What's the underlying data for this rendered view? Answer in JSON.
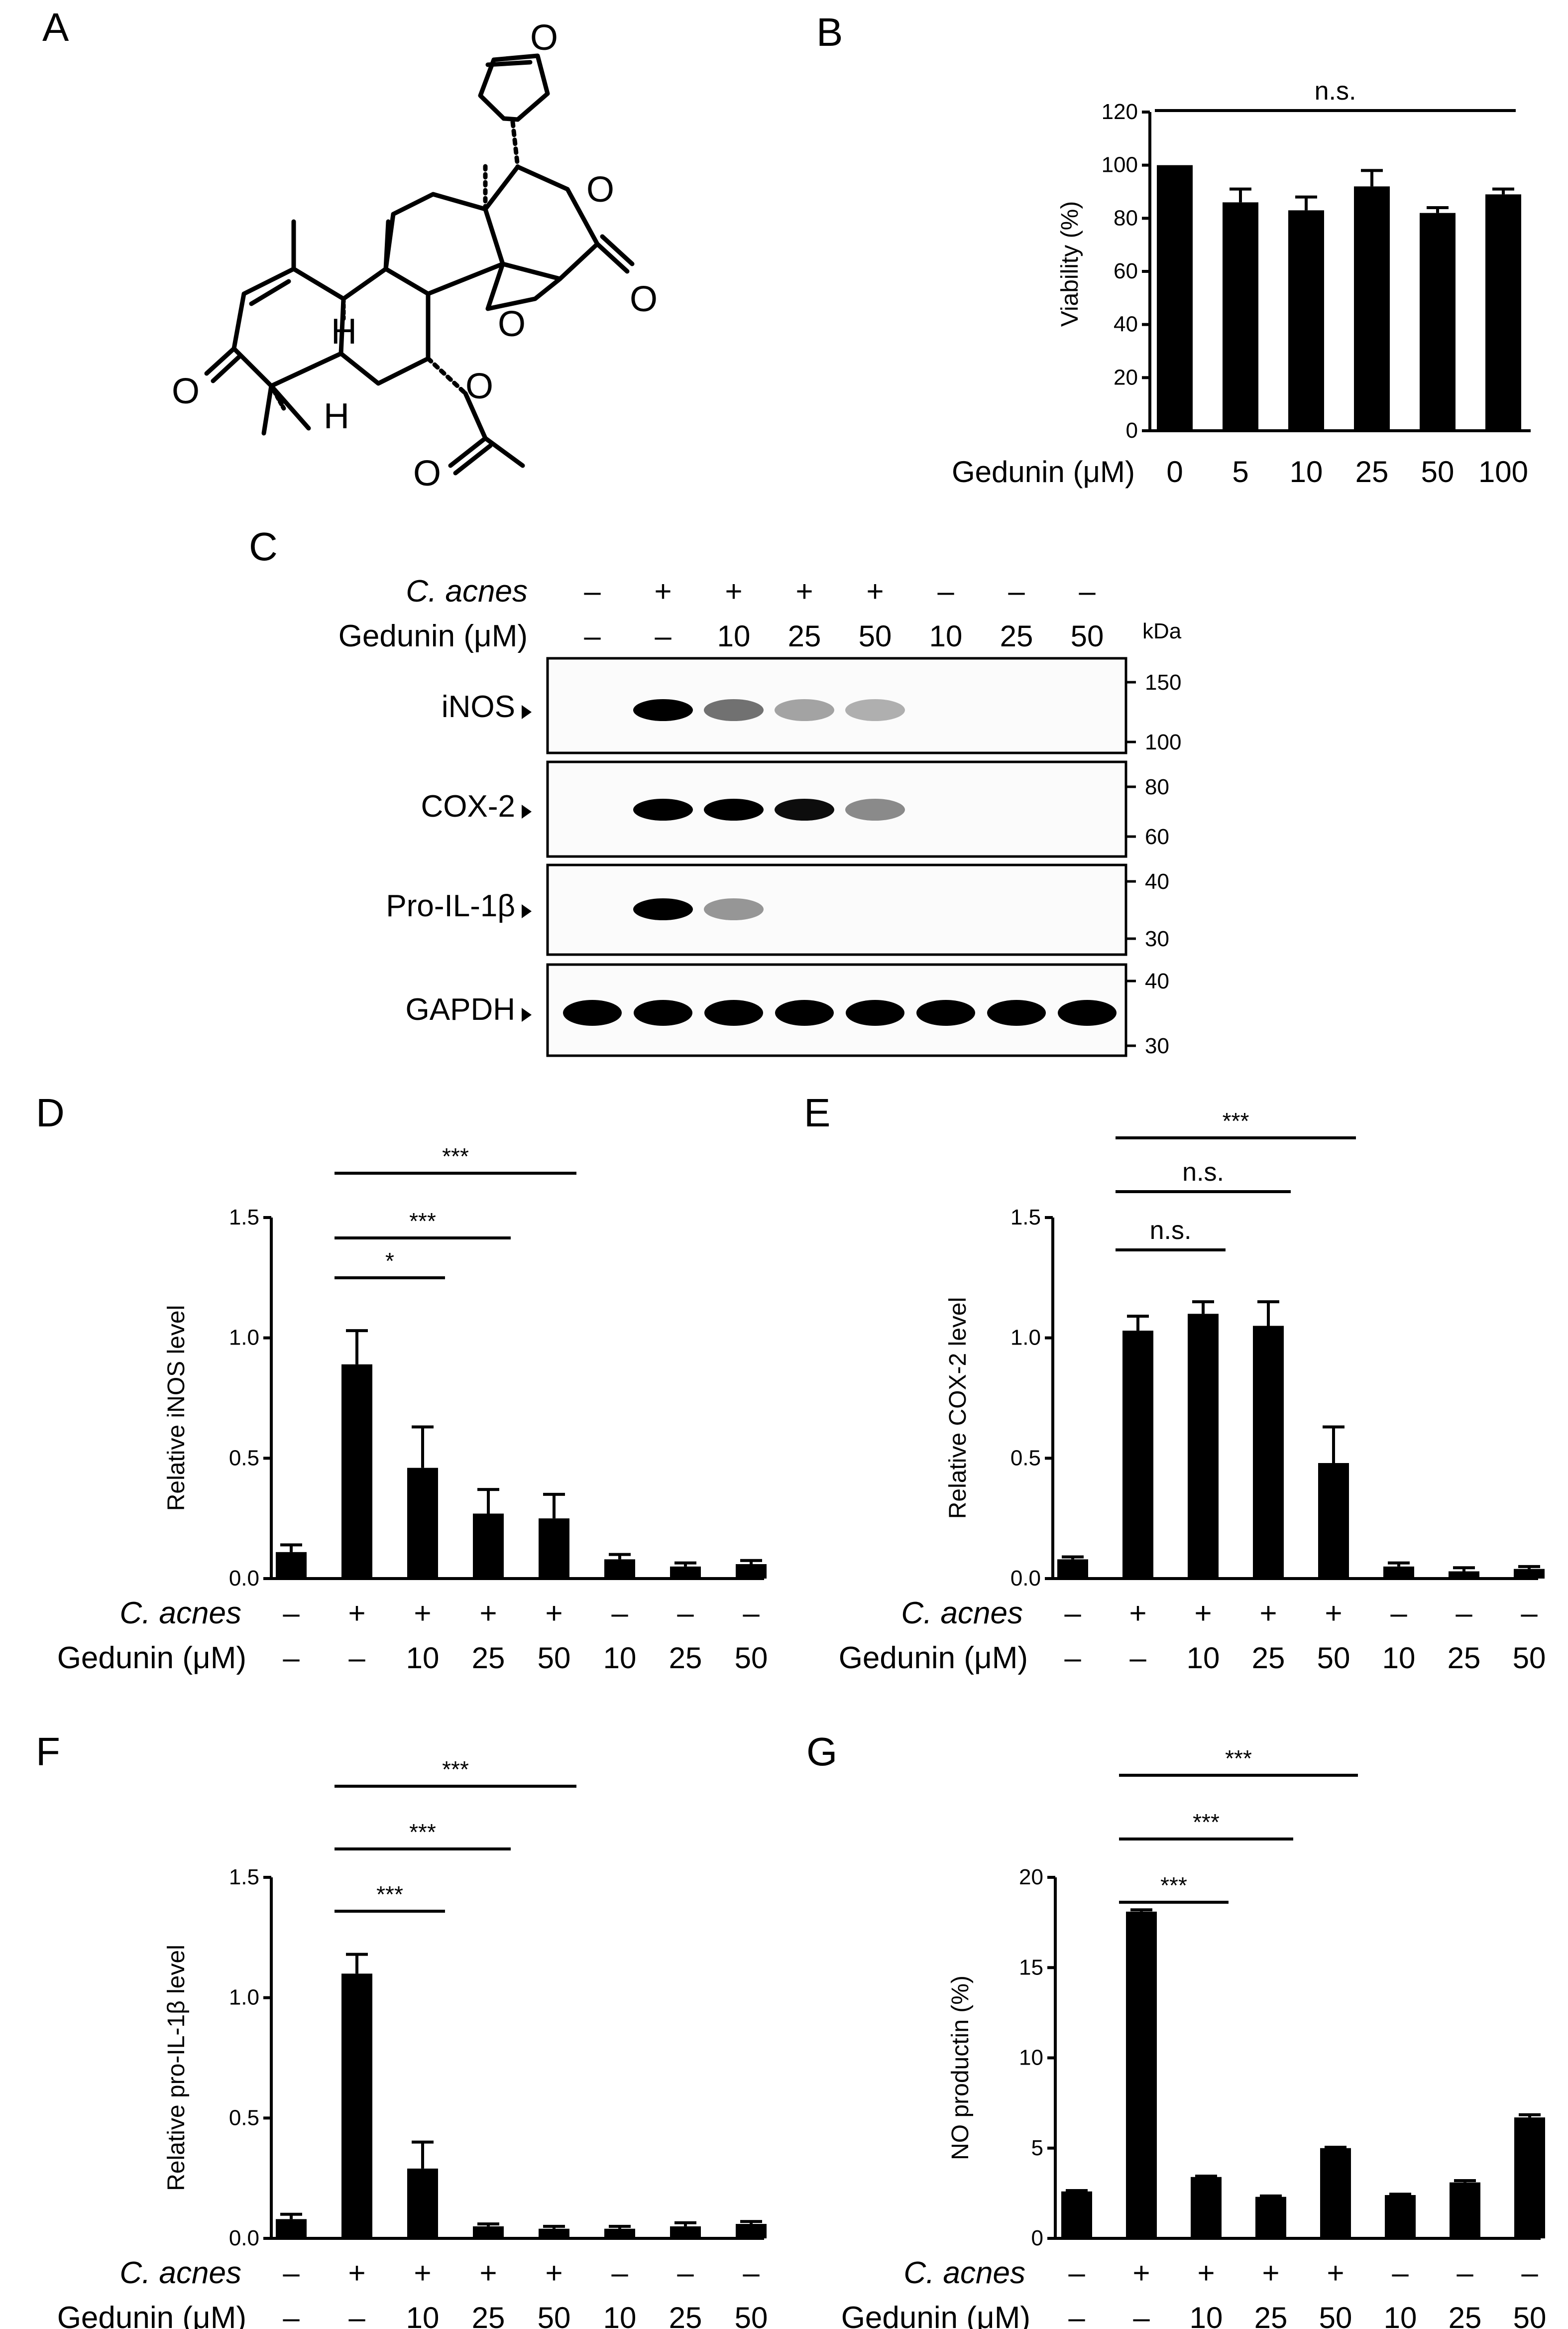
{
  "panels": {
    "A": "A",
    "B": "B",
    "C": "C",
    "D": "D",
    "E": "E",
    "F": "F",
    "G": "G"
  },
  "structure": {
    "atom_o": "O",
    "atom_h": "H"
  },
  "treatment": {
    "cacnes_label": "C. acnes",
    "gedunin_label": "Gedunin (μM)",
    "cacnes": [
      "–",
      "+",
      "+",
      "+",
      "+",
      "–",
      "–",
      "–"
    ],
    "gedunin": [
      "–",
      "–",
      "10",
      "25",
      "50",
      "10",
      "25",
      "50"
    ]
  },
  "blot": {
    "kda_label": "kDa",
    "bands": [
      {
        "name": "iNOS",
        "markers": [
          "150",
          "100"
        ],
        "intensity": [
          0,
          1.0,
          0.55,
          0.35,
          0.3,
          0,
          0,
          0
        ]
      },
      {
        "name": "COX-2",
        "markers": [
          "80",
          "60"
        ],
        "intensity": [
          0,
          1.0,
          1.0,
          0.95,
          0.45,
          0,
          0,
          0
        ]
      },
      {
        "name": "Pro-IL-1β",
        "markers": [
          "40",
          "30"
        ],
        "intensity": [
          0,
          1.0,
          0.4,
          0,
          0,
          0,
          0,
          0
        ]
      },
      {
        "name": "GAPDH",
        "markers": [
          "40",
          "30"
        ],
        "intensity": [
          1,
          1,
          1,
          1,
          1,
          1,
          1,
          1
        ]
      }
    ]
  },
  "chart_data": [
    {
      "panel": "B",
      "type": "bar",
      "xlabel": "Gedunin (μM)",
      "ylabel": "Viability (%)",
      "categories": [
        "0",
        "5",
        "10",
        "25",
        "50",
        "100"
      ],
      "values": [
        100,
        86,
        83,
        92,
        82,
        89
      ],
      "errors": [
        0,
        5,
        5,
        6,
        2,
        2
      ],
      "ylim": [
        0,
        120
      ],
      "yticks": [
        "0",
        "20",
        "40",
        "60",
        "80",
        "100",
        "120"
      ],
      "annotations": [
        {
          "from": 0,
          "to": 5,
          "label": "n.s."
        }
      ]
    },
    {
      "panel": "D",
      "type": "bar",
      "ylabel": "Relative iNOS level",
      "values": [
        0.11,
        0.89,
        0.46,
        0.27,
        0.25,
        0.08,
        0.05,
        0.06
      ],
      "errors": [
        0.03,
        0.14,
        0.17,
        0.1,
        0.1,
        0.02,
        0.015,
        0.015
      ],
      "ylim": [
        0,
        1.5
      ],
      "yticks": [
        "0.0",
        "0.5",
        "1.0",
        "1.5"
      ],
      "annotations": [
        {
          "from": 1,
          "to": 2,
          "label": "*"
        },
        {
          "from": 1,
          "to": 3,
          "label": "***"
        },
        {
          "from": 1,
          "to": 4,
          "label": "***"
        }
      ]
    },
    {
      "panel": "E",
      "type": "bar",
      "ylabel": "Relative COX-2 level",
      "values": [
        0.08,
        1.03,
        1.1,
        1.05,
        0.48,
        0.05,
        0.03,
        0.04
      ],
      "errors": [
        0.01,
        0.06,
        0.05,
        0.1,
        0.15,
        0.015,
        0.015,
        0.01
      ],
      "ylim": [
        0,
        1.5
      ],
      "yticks": [
        "0.0",
        "0.5",
        "1.0",
        "1.5"
      ],
      "annotations": [
        {
          "from": 1,
          "to": 2,
          "label": "n.s."
        },
        {
          "from": 1,
          "to": 3,
          "label": "n.s."
        },
        {
          "from": 1,
          "to": 4,
          "label": "***"
        }
      ]
    },
    {
      "panel": "F",
      "type": "bar",
      "ylabel": "Relative pro-IL-1β level",
      "values": [
        0.08,
        1.1,
        0.29,
        0.05,
        0.04,
        0.04,
        0.05,
        0.06
      ],
      "errors": [
        0.02,
        0.08,
        0.11,
        0.01,
        0.01,
        0.01,
        0.015,
        0.01
      ],
      "ylim": [
        0,
        1.5
      ],
      "yticks": [
        "0.0",
        "0.5",
        "1.0",
        "1.5"
      ],
      "annotations": [
        {
          "from": 1,
          "to": 2,
          "label": "***"
        },
        {
          "from": 1,
          "to": 3,
          "label": "***"
        },
        {
          "from": 1,
          "to": 4,
          "label": "***"
        }
      ]
    },
    {
      "panel": "G",
      "type": "bar",
      "ylabel": "NO productin (%)",
      "values": [
        2.6,
        18.1,
        3.4,
        2.3,
        5.0,
        2.4,
        3.1,
        6.7
      ],
      "errors": [
        0.05,
        0.1,
        0.05,
        0.05,
        0.05,
        0.05,
        0.1,
        0.15
      ],
      "ylim": [
        0,
        20
      ],
      "yticks": [
        "0",
        "5",
        "10",
        "15",
        "20"
      ],
      "annotations": [
        {
          "from": 1,
          "to": 2,
          "label": "***"
        },
        {
          "from": 1,
          "to": 3,
          "label": "***"
        },
        {
          "from": 1,
          "to": 4,
          "label": "***"
        }
      ]
    }
  ]
}
